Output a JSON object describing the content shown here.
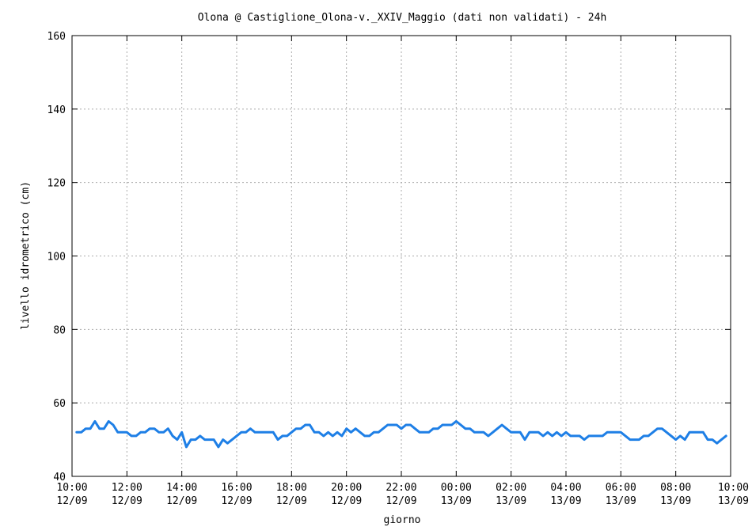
{
  "chart_data": {
    "type": "line",
    "title": "Olona @ Castiglione_Olona-v._XXIV_Maggio (dati non validati) - 24h",
    "xlabel": "giorno",
    "ylabel": "livello idrometrico (cm)",
    "ylim": [
      40,
      160
    ],
    "yticks": [
      40,
      60,
      80,
      100,
      120,
      140,
      160
    ],
    "xlim": [
      "12/09 10:00",
      "13/09 10:00"
    ],
    "xticks": [
      {
        "time": "10:00",
        "date": "12/09"
      },
      {
        "time": "12:00",
        "date": "12/09"
      },
      {
        "time": "14:00",
        "date": "12/09"
      },
      {
        "time": "16:00",
        "date": "12/09"
      },
      {
        "time": "18:00",
        "date": "12/09"
      },
      {
        "time": "20:00",
        "date": "12/09"
      },
      {
        "time": "22:00",
        "date": "12/09"
      },
      {
        "time": "00:00",
        "date": "13/09"
      },
      {
        "time": "02:00",
        "date": "13/09"
      },
      {
        "time": "04:00",
        "date": "13/09"
      },
      {
        "time": "06:00",
        "date": "13/09"
      },
      {
        "time": "08:00",
        "date": "13/09"
      },
      {
        "time": "10:00",
        "date": "13/09"
      }
    ],
    "grid": true,
    "line_color": "#1e7fe6",
    "series": [
      {
        "x": [
          "12/09 10:10",
          "12/09 10:20",
          "12/09 10:30",
          "12/09 10:40",
          "12/09 10:50",
          "12/09 11:00",
          "12/09 11:10",
          "12/09 11:20",
          "12/09 11:30",
          "12/09 11:40",
          "12/09 11:50",
          "12/09 12:00",
          "12/09 12:10",
          "12/09 12:20",
          "12/09 12:30",
          "12/09 12:40",
          "12/09 12:50",
          "12/09 13:00",
          "12/09 13:10",
          "12/09 13:20",
          "12/09 13:30",
          "12/09 13:40",
          "12/09 13:50",
          "12/09 14:00",
          "12/09 14:10",
          "12/09 14:20",
          "12/09 14:30",
          "12/09 14:40",
          "12/09 14:50",
          "12/09 15:00",
          "12/09 15:10",
          "12/09 15:20",
          "12/09 15:30",
          "12/09 15:40",
          "12/09 15:50",
          "12/09 16:00",
          "12/09 16:10",
          "12/09 16:20",
          "12/09 16:30",
          "12/09 16:40",
          "12/09 16:50",
          "12/09 17:00",
          "12/09 17:10",
          "12/09 17:20",
          "12/09 17:30",
          "12/09 17:40",
          "12/09 17:50",
          "12/09 18:00",
          "12/09 18:10",
          "12/09 18:20",
          "12/09 18:30",
          "12/09 18:40",
          "12/09 18:50",
          "12/09 19:00",
          "12/09 19:10",
          "12/09 19:20",
          "12/09 19:30",
          "12/09 19:40",
          "12/09 19:50",
          "12/09 20:00",
          "12/09 20:10",
          "12/09 20:20",
          "12/09 20:30",
          "12/09 20:40",
          "12/09 20:50",
          "12/09 21:00",
          "12/09 21:10",
          "12/09 21:20",
          "12/09 21:30",
          "12/09 21:40",
          "12/09 21:50",
          "12/09 22:00",
          "12/09 22:10",
          "12/09 22:20",
          "12/09 22:30",
          "12/09 22:40",
          "12/09 22:50",
          "12/09 23:00",
          "12/09 23:10",
          "12/09 23:20",
          "12/09 23:30",
          "12/09 23:40",
          "12/09 23:50",
          "13/09 00:00",
          "13/09 00:10",
          "13/09 00:20",
          "13/09 00:30",
          "13/09 00:40",
          "13/09 00:50",
          "13/09 01:00",
          "13/09 01:10",
          "13/09 01:20",
          "13/09 01:30",
          "13/09 01:40",
          "13/09 01:50",
          "13/09 02:00",
          "13/09 02:10",
          "13/09 02:20",
          "13/09 02:30",
          "13/09 02:40",
          "13/09 02:50",
          "13/09 03:00",
          "13/09 03:10",
          "13/09 03:20",
          "13/09 03:30",
          "13/09 03:40",
          "13/09 03:50",
          "13/09 04:00",
          "13/09 04:10",
          "13/09 04:20",
          "13/09 04:30",
          "13/09 04:40",
          "13/09 04:50",
          "13/09 05:00",
          "13/09 05:10",
          "13/09 05:20",
          "13/09 05:30",
          "13/09 05:40",
          "13/09 05:50",
          "13/09 06:00",
          "13/09 06:10",
          "13/09 06:20",
          "13/09 06:30",
          "13/09 06:40",
          "13/09 06:50",
          "13/09 07:00",
          "13/09 07:10",
          "13/09 07:20",
          "13/09 07:30",
          "13/09 07:40",
          "13/09 07:50",
          "13/09 08:00",
          "13/09 08:10",
          "13/09 08:20",
          "13/09 08:30",
          "13/09 08:40",
          "13/09 08:50",
          "13/09 09:00",
          "13/09 09:10",
          "13/09 09:20",
          "13/09 09:30",
          "13/09 09:40",
          "13/09 09:50"
        ],
        "values": [
          52,
          52,
          53,
          53,
          55,
          53,
          53,
          55,
          54,
          52,
          52,
          52,
          51,
          51,
          52,
          52,
          53,
          53,
          52,
          52,
          53,
          51,
          50,
          52,
          48,
          50,
          50,
          51,
          50,
          50,
          50,
          48,
          50,
          49,
          50,
          51,
          52,
          52,
          53,
          52,
          52,
          52,
          52,
          52,
          50,
          51,
          51,
          52,
          53,
          53,
          54,
          54,
          52,
          52,
          51,
          52,
          51,
          52,
          51,
          53,
          52,
          53,
          52,
          51,
          51,
          52,
          52,
          53,
          54,
          54,
          54,
          53,
          54,
          54,
          53,
          52,
          52,
          52,
          53,
          53,
          54,
          54,
          54,
          55,
          54,
          53,
          53,
          52,
          52,
          52,
          51,
          52,
          53,
          54,
          53,
          52,
          52,
          52,
          50,
          52,
          52,
          52,
          51,
          52,
          51,
          52,
          51,
          52,
          51,
          51,
          51,
          50,
          51,
          51,
          51,
          51,
          52,
          52,
          52,
          52,
          51,
          50,
          50,
          50,
          51,
          51,
          52,
          53,
          53,
          52,
          51,
          50,
          51,
          50,
          52,
          52,
          52,
          52,
          50,
          50,
          49,
          50,
          51
        ]
      }
    ]
  }
}
